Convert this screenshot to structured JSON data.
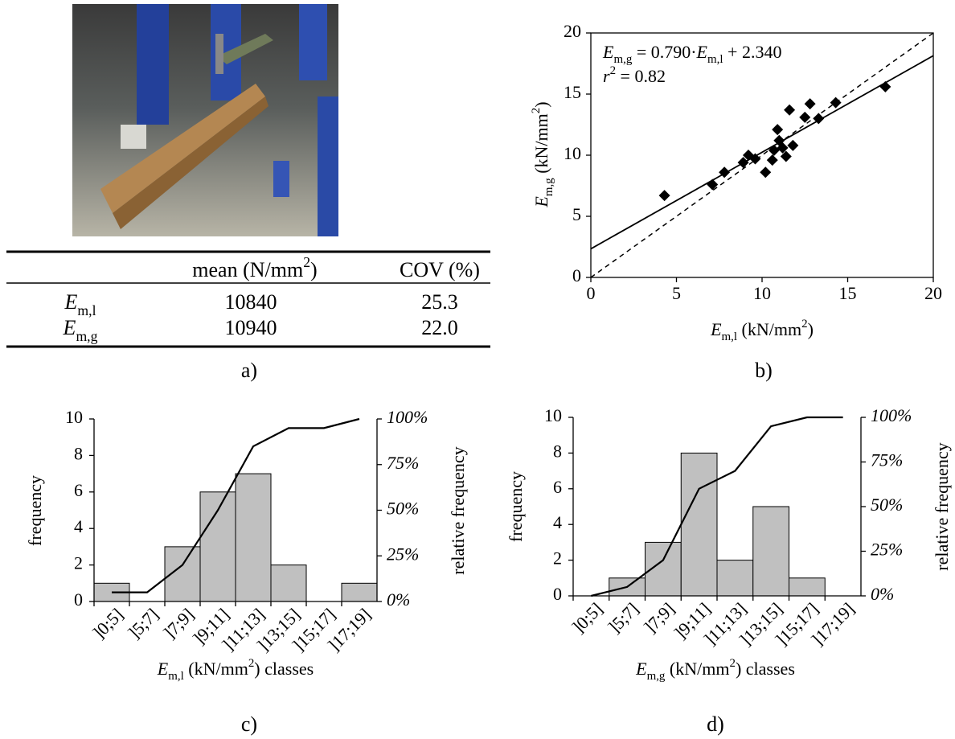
{
  "panel_labels": [
    "a)",
    "b)",
    "c)",
    "d)"
  ],
  "table": {
    "header": [
      [
        "mean (N/mm",
        "2",
        ")"
      ],
      "COV (%)"
    ],
    "rows": [
      [
        [
          "E",
          "m,l"
        ],
        "10840",
        "25.3"
      ],
      [
        [
          "E",
          "m,g"
        ],
        "10940",
        "22.0"
      ]
    ]
  },
  "chart_data": [
    {
      "type": "scatter",
      "annotation": [
        "E",
        "m,g",
        " = 0.790·",
        "E",
        "m,l",
        " + 2.340"
      ],
      "annotation2": [
        "r",
        "2",
        " = 0.82"
      ],
      "xlabel": [
        "E",
        "m,l",
        " (kN/mm",
        "2",
        ")"
      ],
      "ylabel": [
        "E",
        "m,g",
        " (kN/mm",
        "2",
        ")"
      ],
      "x": [
        4.3,
        7.1,
        7.8,
        8.9,
        9.2,
        9.6,
        10.2,
        10.6,
        10.7,
        10.9,
        11.0,
        11.2,
        11.4,
        11.6,
        11.8,
        12.5,
        12.8,
        13.3,
        14.3,
        17.2
      ],
      "values": [
        6.7,
        7.6,
        8.6,
        9.4,
        10.0,
        9.7,
        8.6,
        9.6,
        10.4,
        12.1,
        11.2,
        10.6,
        9.9,
        13.7,
        10.8,
        13.1,
        14.2,
        13.0,
        14.3,
        15.6
      ],
      "color": "#000000",
      "trendline": {
        "slope": 0.79,
        "intercept": 2.34
      },
      "identity_line": true,
      "xlim": [
        0,
        20
      ],
      "ylim": [
        0,
        20
      ],
      "xticks": [
        0,
        5,
        10,
        15,
        20
      ],
      "yticks": [
        0,
        5,
        10,
        15,
        20
      ]
    },
    {
      "type": "bar",
      "xlabel": [
        "E",
        "m,l",
        " (kN/mm",
        "2",
        ") classes"
      ],
      "ylabel": "frequency",
      "y2label": "relative frequency",
      "categories": [
        "]0;5]",
        "]5;7]",
        "]7;9]",
        "]9;11]",
        "]11;13]",
        "]13;15]",
        "]15;17]",
        "]17;19]"
      ],
      "series": [
        {
          "values": [
            1,
            0,
            3,
            6,
            7,
            2,
            0,
            1
          ],
          "color": "#c0c0c0"
        },
        {
          "type": "line",
          "axis": "y2",
          "values": [
            5,
            5,
            20,
            50,
            85,
            95,
            95,
            100
          ],
          "color": "#000000"
        }
      ],
      "ylim": [
        0,
        10
      ],
      "yticks": [
        0,
        2,
        4,
        6,
        8,
        10
      ],
      "y2lim": [
        0,
        100
      ],
      "y2ticks": [
        {
          "value": 0,
          "label": "0%"
        },
        {
          "value": 25,
          "label": "25%"
        },
        {
          "value": 50,
          "label": "50%"
        },
        {
          "value": 75,
          "label": "75%"
        },
        {
          "value": 100,
          "label": "100%"
        }
      ]
    },
    {
      "type": "bar",
      "xlabel": [
        "E",
        "m,g",
        " (kN/mm",
        "2",
        ") classes"
      ],
      "ylabel": "frequency",
      "y2label": "relative frequency",
      "categories": [
        "]0;5]",
        "]5;7]",
        "]7;9]",
        "]9;11]",
        "]11;13]",
        "]13;15]",
        "]15;17]",
        "]17;19]"
      ],
      "series": [
        {
          "values": [
            0,
            1,
            3,
            8,
            2,
            5,
            1,
            0
          ],
          "color": "#c0c0c0"
        },
        {
          "type": "line",
          "axis": "y2",
          "values": [
            0,
            5,
            20,
            60,
            70,
            95,
            100,
            100
          ],
          "color": "#000000"
        }
      ],
      "ylim": [
        0,
        10
      ],
      "yticks": [
        0,
        2,
        4,
        6,
        8,
        10
      ],
      "y2lim": [
        0,
        100
      ],
      "y2ticks": [
        {
          "value": 0,
          "label": "0%"
        },
        {
          "value": 25,
          "label": "25%"
        },
        {
          "value": 50,
          "label": "50%"
        },
        {
          "value": 75,
          "label": "75%"
        },
        {
          "value": 100,
          "label": "100%"
        }
      ]
    }
  ]
}
